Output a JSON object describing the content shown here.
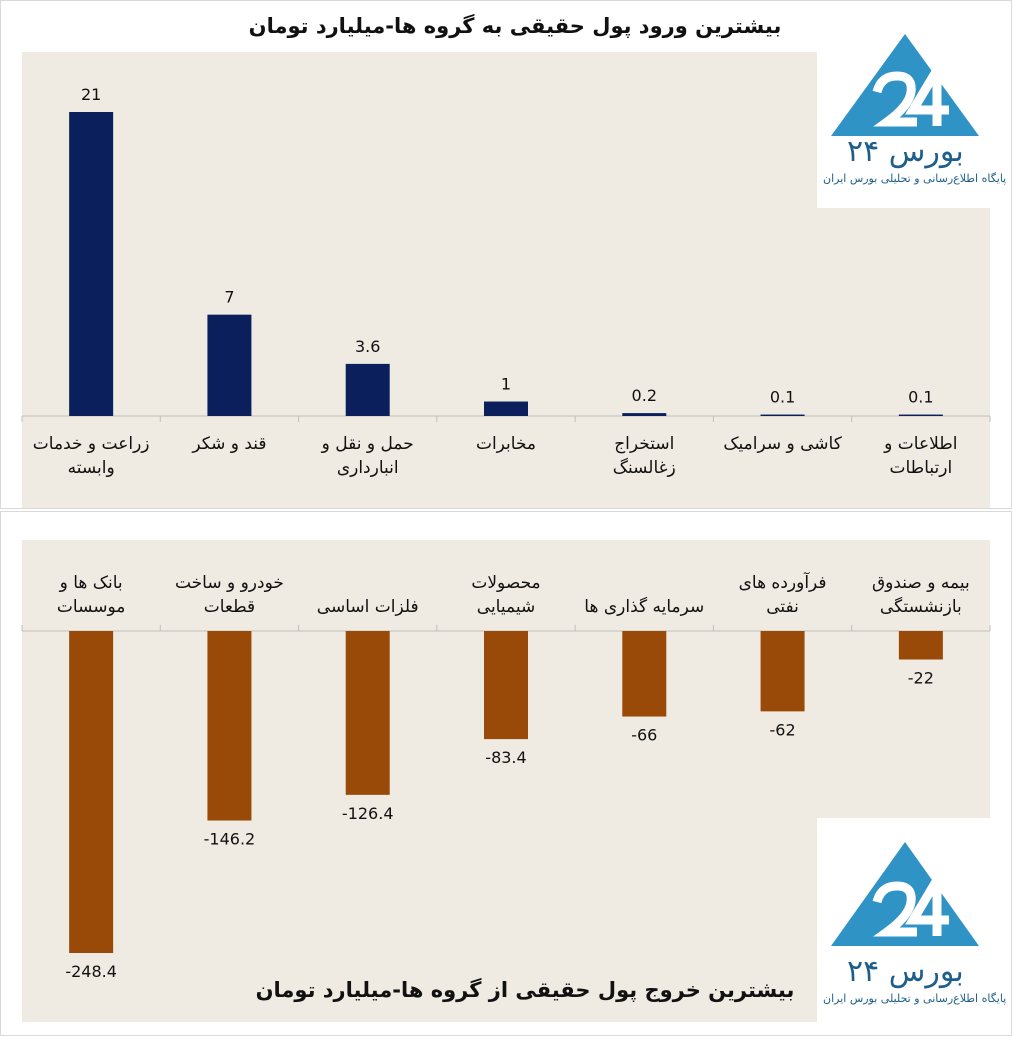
{
  "chart_data": [
    {
      "type": "bar",
      "title": "بیشترین ورود پول حقیقی به گروه ها-میلیارد تومان",
      "categories": [
        [
          "زراعت و خدمات",
          "وابسته"
        ],
        [
          "قند و شکر"
        ],
        [
          "حمل و نقل و",
          "انبارداری"
        ],
        [
          "مخابرات"
        ],
        [
          "استخراج",
          "زغالسنگ"
        ],
        [
          "کاشی و سرامیک"
        ],
        [
          "اطلاعات و",
          "ارتباطات"
        ]
      ],
      "values": [
        21,
        7,
        3.6,
        1,
        0.2,
        0.1,
        0.1
      ],
      "value_labels": [
        "21",
        "7",
        "3.6",
        "1",
        "0.2",
        "0.1",
        "0.1"
      ],
      "ylim": [
        0,
        21
      ],
      "color": "#0b1f5c",
      "grid": false,
      "legend": "none"
    },
    {
      "type": "bar",
      "title": "بیشترین خروج پول حقیقی از گروه ها-میلیارد تومان",
      "categories": [
        [
          "بانک ها و",
          "موسسات"
        ],
        [
          "خودرو و ساخت",
          "قطعات"
        ],
        [
          "فلزات اساسی"
        ],
        [
          "محصولات",
          "شیمیایی"
        ],
        [
          "سرمایه گذاری ها"
        ],
        [
          "فرآورده های",
          "نفتی"
        ],
        [
          "بیمه و صندوق",
          "بازنشستگی"
        ]
      ],
      "values": [
        -248.4,
        -146.2,
        -126.4,
        -83.4,
        -66,
        -62,
        -22
      ],
      "value_labels": [
        "-248.4",
        "-146.2",
        "-126.4",
        "-83.4",
        "-66",
        "-62",
        "-22"
      ],
      "ylim": [
        -248.4,
        0
      ],
      "color": "#9a4a08",
      "grid": false,
      "legend": "none"
    }
  ],
  "logo": {
    "name": "بورس ۲۴",
    "tagline": "پایگاه اطلاع‌رسانی و تحلیلی بورس ایران",
    "colors": {
      "primary": "#2f93c6",
      "text": "#1d5f8a"
    }
  }
}
